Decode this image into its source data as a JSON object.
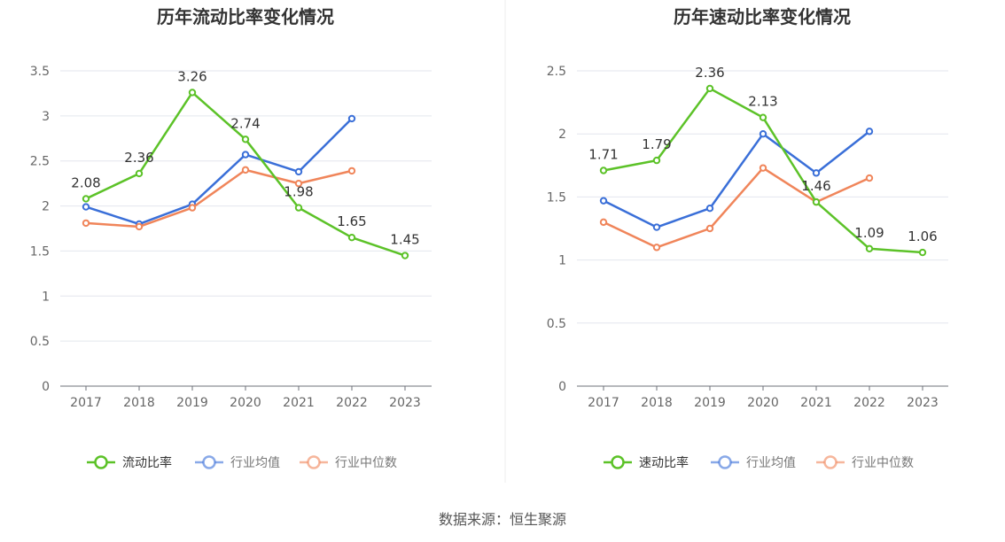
{
  "source_text": "数据来源：恒生聚源",
  "chart_data": [
    {
      "type": "line",
      "title": "历年流动比率变化情况",
      "x": [
        "2017",
        "2018",
        "2019",
        "2020",
        "2021",
        "2022",
        "2023"
      ],
      "ylim": [
        0,
        3.5
      ],
      "yticks": [
        0,
        0.5,
        1,
        1.5,
        2,
        2.5,
        3,
        3.5
      ],
      "ytick_labels": [
        "0",
        "0.5",
        "1",
        "1.5",
        "2",
        "2.5",
        "3",
        "3.5"
      ],
      "grid": true,
      "legend_position": "bottom",
      "series": [
        {
          "name": "流动比率",
          "color": "#5cc228",
          "labeled": true,
          "values": [
            2.08,
            2.36,
            3.26,
            2.74,
            1.98,
            1.65,
            1.45
          ],
          "labels": [
            "2.08",
            "2.36",
            "3.26",
            "2.74",
            "1.98",
            "1.65",
            "1.45"
          ]
        },
        {
          "name": "行业均值",
          "color": "#3a6fd8",
          "labeled": false,
          "values": [
            1.99,
            1.8,
            2.02,
            2.57,
            2.38,
            2.97,
            null
          ]
        },
        {
          "name": "行业中位数",
          "color": "#f0855a",
          "labeled": false,
          "values": [
            1.81,
            1.77,
            1.98,
            2.4,
            2.25,
            2.39,
            null
          ]
        }
      ]
    },
    {
      "type": "line",
      "title": "历年速动比率变化情况",
      "x": [
        "2017",
        "2018",
        "2019",
        "2020",
        "2021",
        "2022",
        "2023"
      ],
      "ylim": [
        0,
        2.5
      ],
      "yticks": [
        0,
        0.5,
        1,
        1.5,
        2,
        2.5
      ],
      "ytick_labels": [
        "0",
        "0.5",
        "1",
        "1.5",
        "2",
        "2.5"
      ],
      "grid": true,
      "legend_position": "bottom",
      "series": [
        {
          "name": "速动比率",
          "color": "#5cc228",
          "labeled": true,
          "values": [
            1.71,
            1.79,
            2.36,
            2.13,
            1.46,
            1.09,
            1.06
          ],
          "labels": [
            "1.71",
            "1.79",
            "2.36",
            "2.13",
            "1.46",
            "1.09",
            "1.06"
          ]
        },
        {
          "name": "行业均值",
          "color": "#3a6fd8",
          "labeled": false,
          "values": [
            1.47,
            1.26,
            1.41,
            2.0,
            1.69,
            2.02,
            null
          ]
        },
        {
          "name": "行业中位数",
          "color": "#f0855a",
          "labeled": false,
          "values": [
            1.3,
            1.1,
            1.25,
            1.73,
            1.46,
            1.65,
            null
          ]
        }
      ]
    }
  ]
}
